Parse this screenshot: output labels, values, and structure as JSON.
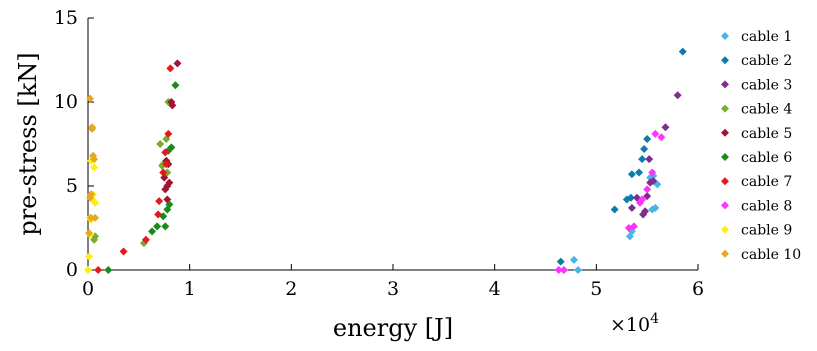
{
  "chart_data": {
    "type": "scatter",
    "xlabel": "energy [J]",
    "ylabel": "pre-stress [kN]",
    "x_multiplier_label": "×10",
    "x_multiplier_exp": "4",
    "xlim": [
      0,
      60000
    ],
    "ylim": [
      0,
      15
    ],
    "xticks": [
      "0",
      "1",
      "2",
      "3",
      "4",
      "5",
      "6"
    ],
    "yticks": [
      "0",
      "5",
      "10",
      "15"
    ],
    "grid": false,
    "legend_position": "right",
    "series": [
      {
        "name": "cable 1",
        "color": "#4db3e6",
        "x": [
          47800,
          48200,
          46800,
          53300,
          53500,
          55500,
          55800,
          55300,
          56000,
          55600
        ],
        "y": [
          0.6,
          0.0,
          0.0,
          2.0,
          2.3,
          3.6,
          3.7,
          5.5,
          5.1,
          5.6
        ]
      },
      {
        "name": "cable 2",
        "color": "#0f7ba8",
        "x": [
          46500,
          51800,
          53000,
          53500,
          54200,
          54500,
          54700,
          55000,
          53400,
          58500
        ],
        "y": [
          0.5,
          3.6,
          4.2,
          5.7,
          5.8,
          6.6,
          7.2,
          7.8,
          4.3,
          13.0
        ]
      },
      {
        "name": "cable 3",
        "color": "#7e2f8e",
        "x": [
          53500,
          54000,
          54600,
          55000,
          55200,
          55600,
          56800,
          58000,
          54800,
          55300
        ],
        "y": [
          3.7,
          4.3,
          3.3,
          4.4,
          6.6,
          5.3,
          8.5,
          10.4,
          3.5,
          5.2
        ]
      },
      {
        "name": "cable 4",
        "color": "#77ac30",
        "x": [
          600,
          700,
          7100,
          7300,
          7600,
          7800,
          7700,
          7400,
          7900,
          5500
        ],
        "y": [
          1.8,
          2.0,
          7.5,
          6.2,
          6.4,
          5.8,
          7.8,
          6.3,
          10.0,
          1.6
        ]
      },
      {
        "name": "cable 5",
        "color": "#a2142f",
        "x": [
          7600,
          7800,
          7500,
          8000,
          7900,
          7700,
          8300,
          8200,
          7800,
          8800
        ],
        "y": [
          4.8,
          5.0,
          5.5,
          5.2,
          6.3,
          6.5,
          9.8,
          10.0,
          4.2,
          12.3
        ]
      },
      {
        "name": "cable 6",
        "color": "#1a8a1a",
        "x": [
          2000,
          6300,
          6800,
          7400,
          7600,
          7800,
          8000,
          7900,
          8200,
          8600
        ],
        "y": [
          0.0,
          2.3,
          2.6,
          3.2,
          2.6,
          3.6,
          3.9,
          7.1,
          7.3,
          11.0
        ]
      },
      {
        "name": "cable 7",
        "color": "#e31a1c",
        "x": [
          1000,
          3500,
          5700,
          6900,
          7000,
          7400,
          7700,
          7600,
          7900,
          8100
        ],
        "y": [
          0.0,
          1.1,
          1.8,
          3.3,
          4.1,
          5.8,
          6.3,
          7.0,
          8.1,
          12.0
        ]
      },
      {
        "name": "cable 8",
        "color": "#ff33ff",
        "x": [
          46300,
          46800,
          53200,
          53700,
          54500,
          55000,
          55500,
          55800,
          56400,
          54300
        ],
        "y": [
          0.0,
          0.0,
          2.5,
          2.6,
          4.2,
          4.8,
          5.8,
          8.1,
          7.9,
          4.0
        ]
      },
      {
        "name": "cable 9",
        "color": "#ffee11",
        "x": [
          0,
          100,
          200,
          300,
          400,
          500,
          600,
          700,
          200,
          300
        ],
        "y": [
          0.0,
          0.8,
          2.1,
          3.0,
          4.2,
          4.5,
          6.1,
          4.0,
          3.1,
          6.5
        ]
      },
      {
        "name": "cable 10",
        "color": "#e6a81e",
        "x": [
          100,
          200,
          300,
          400,
          500,
          600,
          700,
          200,
          300,
          400
        ],
        "y": [
          2.2,
          4.3,
          3.1,
          8.5,
          6.8,
          6.6,
          3.1,
          10.2,
          4.5,
          8.4
        ]
      }
    ]
  }
}
